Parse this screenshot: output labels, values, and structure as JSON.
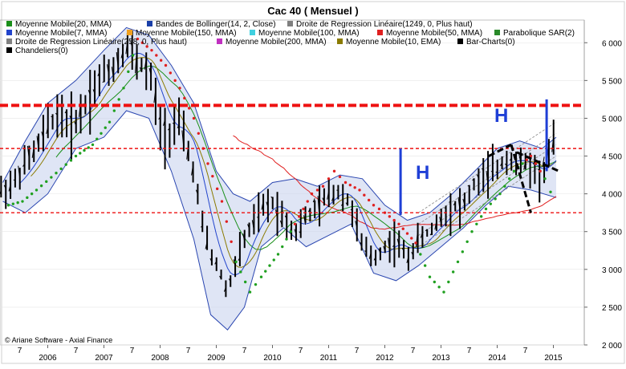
{
  "chart_data": {
    "type": "line",
    "title": "Cac 40  ( Mensuel )",
    "copyright": "© Ariane Software - Axial Finance",
    "legend": [
      {
        "label": "Moyenne Mobile(20, MMA)",
        "color": "#1a8f1a"
      },
      {
        "label": "Bandes de Bollinger(14, 2, Close)",
        "color": "#1a3fa8"
      },
      {
        "label": "Droite de Regression Linéaire(1249, 0, Plus haut)",
        "color": "#7f7f7f"
      },
      {
        "label": "Moyenne Mobile(7, MMA)",
        "color": "#2244cc"
      },
      {
        "label": "Moyenne Mobile(150, MMA)",
        "color": "#f0a020"
      },
      {
        "label": "Moyenne Mobile(100, MMA)",
        "color": "#40d0e0"
      },
      {
        "label": "Moyenne Mobile(50, MMA)",
        "color": "#e02020"
      },
      {
        "label": "Parabolique SAR(2)",
        "color": "#2a8a2a"
      },
      {
        "label": "Droite de Regression Linéaire(258, 0, Plus haut)",
        "color": "#808080"
      },
      {
        "label": "Moyenne Mobile(200, MMA)",
        "color": "#c030c0"
      },
      {
        "label": "Moyenne Mobile(10, EMA)",
        "color": "#8a7a00"
      },
      {
        "label": "Bar-Charts(0)",
        "color": "#000000"
      },
      {
        "label": "Chandeliers(0)",
        "color": "#000000"
      }
    ],
    "y_axis": {
      "min": 2000,
      "max": 6300,
      "ticks": [
        2000,
        2500,
        3000,
        3500,
        4000,
        4500,
        5000,
        5500,
        6000
      ],
      "tick_labels": [
        "2 000",
        "2 500",
        "3 000",
        "3 500",
        "4 000",
        "4 500",
        "5 000",
        "5 500",
        "6 000"
      ],
      "side": "right"
    },
    "x_axis": {
      "year_labels": [
        "2006",
        "2007",
        "2008",
        "2009",
        "2010",
        "2011",
        "2012",
        "2013",
        "2014",
        "2015"
      ],
      "year_positions": [
        2006.0,
        2007.0,
        2008.0,
        2009.0,
        2010.0,
        2011.0,
        2012.0,
        2013.0,
        2014.0,
        2015.0
      ],
      "month_label": "7",
      "month_positions": [
        2005.5,
        2006.5,
        2007.5,
        2008.5,
        2009.5,
        2010.5,
        2011.5,
        2012.5,
        2013.5,
        2014.5
      ],
      "min": 2005.15,
      "max": 2015.55
    },
    "horizontal_levels": [
      {
        "value": 5170,
        "style": "dash-thick",
        "color": "#ee1111"
      },
      {
        "value": 4600,
        "style": "dash",
        "color": "#ee1111"
      },
      {
        "value": 3750,
        "style": "dash",
        "color": "#ee1111"
      }
    ],
    "annotations": [
      {
        "text": "H",
        "x": 2012.55,
        "y": 4200
      },
      {
        "text": "H",
        "x": 2013.95,
        "y": 4950
      }
    ],
    "markers": [
      {
        "type": "vertical-bar",
        "x": 2012.28,
        "y1": 3720,
        "y2": 4600,
        "color": "#1f3fd6"
      },
      {
        "type": "vertical-bar",
        "x": 2014.88,
        "y1": 4300,
        "y2": 5250,
        "color": "#1f3fd6"
      }
    ],
    "close_points": [
      [
        2005.15,
        4050
      ],
      [
        2005.4,
        4150
      ],
      [
        2005.6,
        4400
      ],
      [
        2005.8,
        4600
      ],
      [
        2006.0,
        4900
      ],
      [
        2006.2,
        5100
      ],
      [
        2006.4,
        4900
      ],
      [
        2006.6,
        5100
      ],
      [
        2006.8,
        5400
      ],
      [
        2007.0,
        5600
      ],
      [
        2007.2,
        5700
      ],
      [
        2007.4,
        6000
      ],
      [
        2007.55,
        5800
      ],
      [
        2007.7,
        5700
      ],
      [
        2007.85,
        5500
      ],
      [
        2008.0,
        4900
      ],
      [
        2008.15,
        4800
      ],
      [
        2008.3,
        5000
      ],
      [
        2008.45,
        4700
      ],
      [
        2008.6,
        4300
      ],
      [
        2008.75,
        3600
      ],
      [
        2008.9,
        3200
      ],
      [
        2009.05,
        3000
      ],
      [
        2009.2,
        2700
      ],
      [
        2009.35,
        3100
      ],
      [
        2009.5,
        3400
      ],
      [
        2009.65,
        3600
      ],
      [
        2009.8,
        3800
      ],
      [
        2010.0,
        3900
      ],
      [
        2010.2,
        3700
      ],
      [
        2010.4,
        3500
      ],
      [
        2010.6,
        3700
      ],
      [
        2010.8,
        3800
      ],
      [
        2011.0,
        4000
      ],
      [
        2011.2,
        4050
      ],
      [
        2011.4,
        3850
      ],
      [
        2011.6,
        3300
      ],
      [
        2011.8,
        3150
      ],
      [
        2012.0,
        3300
      ],
      [
        2012.2,
        3400
      ],
      [
        2012.4,
        3150
      ],
      [
        2012.6,
        3400
      ],
      [
        2012.8,
        3500
      ],
      [
        2013.0,
        3700
      ],
      [
        2013.2,
        3850
      ],
      [
        2013.4,
        3850
      ],
      [
        2013.6,
        4150
      ],
      [
        2013.8,
        4250
      ],
      [
        2014.0,
        4350
      ],
      [
        2014.2,
        4500
      ],
      [
        2014.4,
        4400
      ],
      [
        2014.6,
        4400
      ],
      [
        2014.8,
        4200
      ],
      [
        2014.95,
        4600
      ],
      [
        2015.05,
        4700
      ]
    ],
    "bollinger_upper": [
      [
        2005.2,
        4150
      ],
      [
        2005.6,
        4700
      ],
      [
        2006.0,
        5200
      ],
      [
        2006.5,
        5500
      ],
      [
        2007.0,
        5900
      ],
      [
        2007.4,
        6200
      ],
      [
        2007.8,
        6100
      ],
      [
        2008.2,
        5700
      ],
      [
        2008.6,
        5200
      ],
      [
        2009.0,
        4300
      ],
      [
        2009.3,
        4000
      ],
      [
        2009.6,
        3900
      ],
      [
        2010.0,
        4150
      ],
      [
        2010.4,
        4200
      ],
      [
        2010.8,
        4100
      ],
      [
        2011.2,
        4250
      ],
      [
        2011.6,
        4200
      ],
      [
        2012.0,
        3850
      ],
      [
        2012.4,
        3650
      ],
      [
        2012.8,
        3750
      ],
      [
        2013.2,
        4000
      ],
      [
        2013.6,
        4300
      ],
      [
        2014.0,
        4600
      ],
      [
        2014.4,
        4700
      ],
      [
        2014.8,
        4600
      ],
      [
        2015.05,
        4750
      ]
    ],
    "bollinger_lower": [
      [
        2005.2,
        3900
      ],
      [
        2005.6,
        3750
      ],
      [
        2006.0,
        4000
      ],
      [
        2006.5,
        4600
      ],
      [
        2007.0,
        4750
      ],
      [
        2007.4,
        5100
      ],
      [
        2007.8,
        5000
      ],
      [
        2008.2,
        4300
      ],
      [
        2008.6,
        3400
      ],
      [
        2008.9,
        2400
      ],
      [
        2009.2,
        2200
      ],
      [
        2009.5,
        2500
      ],
      [
        2009.8,
        3300
      ],
      [
        2010.2,
        3550
      ],
      [
        2010.6,
        3300
      ],
      [
        2011.0,
        3450
      ],
      [
        2011.4,
        3600
      ],
      [
        2011.8,
        2950
      ],
      [
        2012.2,
        2850
      ],
      [
        2012.6,
        3050
      ],
      [
        2013.0,
        3300
      ],
      [
        2013.4,
        3550
      ],
      [
        2013.8,
        3850
      ],
      [
        2014.2,
        4100
      ],
      [
        2014.6,
        4050
      ],
      [
        2015.05,
        3950
      ]
    ],
    "sar_points": [
      [
        2005.3,
        3850
      ],
      [
        2005.55,
        3900
      ],
      [
        2005.8,
        4050
      ],
      [
        2006.5,
        4500
      ],
      [
        2006.8,
        4650
      ],
      [
        2007.1,
        4950
      ],
      [
        2007.35,
        5400
      ],
      [
        2007.6,
        6050
      ],
      [
        2007.85,
        5900
      ],
      [
        2008.1,
        5700
      ],
      [
        2008.35,
        5400
      ],
      [
        2008.6,
        5000
      ],
      [
        2008.85,
        4400
      ],
      [
        2009.1,
        3900
      ],
      [
        2009.35,
        3100
      ],
      [
        2009.6,
        2700
      ],
      [
        2009.8,
        2900
      ],
      [
        2010.1,
        3200
      ],
      [
        2010.4,
        3600
      ],
      [
        2010.7,
        4000
      ],
      [
        2010.9,
        4100
      ],
      [
        2011.1,
        4300
      ],
      [
        2011.3,
        4150
      ],
      [
        2011.55,
        4050
      ],
      [
        2011.8,
        3850
      ],
      [
        2012.0,
        3750
      ],
      [
        2012.25,
        3600
      ],
      [
        2012.55,
        3350
      ],
      [
        2012.8,
        2900
      ],
      [
        2013.05,
        2700
      ],
      [
        2013.3,
        3100
      ],
      [
        2013.55,
        3500
      ],
      [
        2013.8,
        3800
      ],
      [
        2014.05,
        4000
      ],
      [
        2014.3,
        4300
      ],
      [
        2014.6,
        4500
      ],
      [
        2014.85,
        4200
      ],
      [
        2015.05,
        3850
      ]
    ]
  }
}
